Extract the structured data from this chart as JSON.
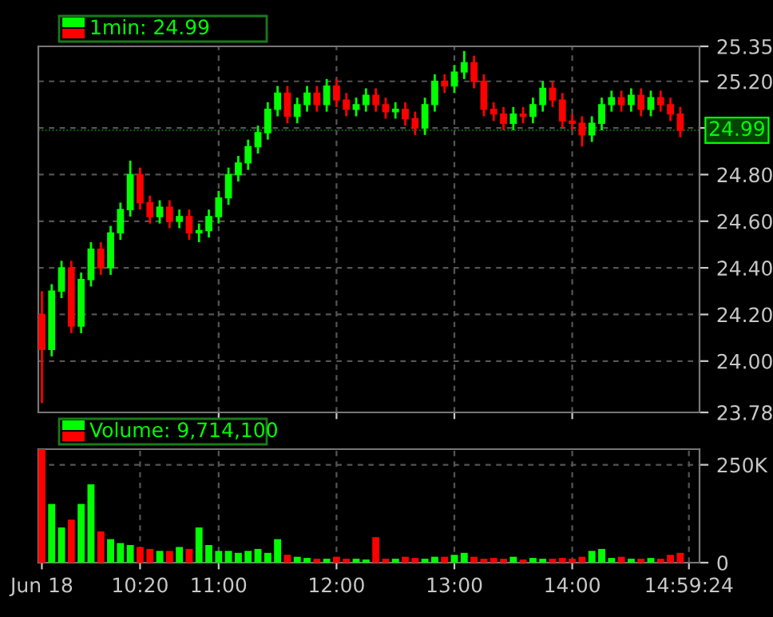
{
  "chart_data": [
    {
      "type": "candlestick",
      "legend": "top left",
      "grid": true,
      "line_style": "dashed",
      "tick_labels": "y",
      "xlim": [
        9.47,
        15.08
      ],
      "ylim": [
        23.78,
        25.35
      ],
      "yticks": [
        {
          "value": 23.78,
          "label": "23.78"
        },
        {
          "value": 24.0,
          "label": "24.00"
        },
        {
          "value": 24.2,
          "label": "24.20"
        },
        {
          "value": 24.4,
          "label": "24.40"
        },
        {
          "value": 24.6,
          "label": "24.60"
        },
        {
          "value": 24.8,
          "label": "24.80"
        },
        {
          "value": 25.0,
          "label": null
        },
        {
          "value": 25.2,
          "label": "25.20"
        },
        {
          "value": 25.35,
          "label": "25.35"
        }
      ],
      "ref_lines": [
        {
          "axis": "y",
          "value": 24.99,
          "label": "24.99",
          "color": "#00ff00"
        }
      ],
      "x": [
        9.5,
        9.5833,
        9.6667,
        9.75,
        9.8333,
        9.9167,
        10,
        10.0833,
        10.1667,
        10.25,
        10.3333,
        10.4167,
        10.5,
        10.5833,
        10.6667,
        10.75,
        10.8333,
        10.9167,
        11,
        11.0833,
        11.1667,
        11.25,
        11.3333,
        11.4167,
        11.5,
        11.5833,
        11.6667,
        11.75,
        11.8333,
        11.9167,
        12,
        12.0833,
        12.1667,
        12.25,
        12.3333,
        12.4167,
        12.5,
        12.5833,
        12.6667,
        12.75,
        12.8333,
        12.9167,
        13,
        13.0833,
        13.1667,
        13.25,
        13.3333,
        13.4167,
        13.5,
        13.5833,
        13.6667,
        13.75,
        13.8333,
        13.9167,
        14,
        14.0833,
        14.1667,
        14.25,
        14.3333,
        14.4167,
        14.5,
        14.5833,
        14.6667,
        14.75,
        14.8333,
        14.9167
      ],
      "series": [
        {
          "name": "1min: 24.99",
          "colors": [
            "#ff0000",
            "#00ff00",
            "#00ff00",
            "#ff0000",
            "#00ff00",
            "#00ff00",
            "#ff0000",
            "#00ff00",
            "#00ff00",
            "#00ff00",
            "#ff0000",
            "#ff0000",
            "#00ff00",
            "#ff0000",
            "#00ff00",
            "#ff0000",
            "#00ff00",
            "#00ff00",
            "#00ff00",
            "#00ff00",
            "#00ff00",
            "#00ff00",
            "#00ff00",
            "#00ff00",
            "#00ff00",
            "#ff0000",
            "#00ff00",
            "#00ff00",
            "#ff0000",
            "#00ff00",
            "#ff0000",
            "#ff0000",
            "#00ff00",
            "#00ff00",
            "#ff0000",
            "#ff0000",
            "#00ff00",
            "#ff0000",
            "#ff0000",
            "#00ff00",
            "#00ff00",
            "#ff0000",
            "#00ff00",
            "#00ff00",
            "#ff0000",
            "#ff0000",
            "#ff0000",
            "#ff0000",
            "#00ff00",
            "#ff0000",
            "#00ff00",
            "#00ff00",
            "#ff0000",
            "#ff0000",
            "#ff0000",
            "#ff0000",
            "#00ff00",
            "#00ff00",
            "#00ff00",
            "#ff0000",
            "#00ff00",
            "#ff0000",
            "#00ff00",
            "#ff0000",
            "#ff0000",
            "#ff0000"
          ],
          "ohlc": [
            [
              24.2,
              24.3,
              23.82,
              24.05
            ],
            [
              24.05,
              24.33,
              24.02,
              24.3
            ],
            [
              24.3,
              24.43,
              24.27,
              24.4
            ],
            [
              24.4,
              24.43,
              24.12,
              24.15
            ],
            [
              24.15,
              24.38,
              24.12,
              24.35
            ],
            [
              24.35,
              24.51,
              24.32,
              24.48
            ],
            [
              24.48,
              24.51,
              24.37,
              24.4
            ],
            [
              24.4,
              24.58,
              24.37,
              24.55
            ],
            [
              24.55,
              24.68,
              24.52,
              24.65
            ],
            [
              24.65,
              24.86,
              24.62,
              24.8
            ],
            [
              24.8,
              24.83,
              24.65,
              24.68
            ],
            [
              24.68,
              24.71,
              24.59,
              24.62
            ],
            [
              24.62,
              24.69,
              24.59,
              24.66
            ],
            [
              24.66,
              24.69,
              24.57,
              24.6
            ],
            [
              24.6,
              24.65,
              24.57,
              24.62
            ],
            [
              24.62,
              24.65,
              24.52,
              24.55
            ],
            [
              24.55,
              24.59,
              24.51,
              24.56
            ],
            [
              24.56,
              24.65,
              24.53,
              24.62
            ],
            [
              24.62,
              24.73,
              24.59,
              24.7
            ],
            [
              24.7,
              24.83,
              24.67,
              24.8
            ],
            [
              24.8,
              24.88,
              24.77,
              24.85
            ],
            [
              24.85,
              24.95,
              24.82,
              24.92
            ],
            [
              24.92,
              25.01,
              24.89,
              24.98
            ],
            [
              24.98,
              25.11,
              24.95,
              25.08
            ],
            [
              25.08,
              25.18,
              25.05,
              25.15
            ],
            [
              25.15,
              25.18,
              25.02,
              25.05
            ],
            [
              25.05,
              25.13,
              25.02,
              25.1
            ],
            [
              25.1,
              25.18,
              25.07,
              25.15
            ],
            [
              25.15,
              25.18,
              25.07,
              25.1
            ],
            [
              25.1,
              25.21,
              25.07,
              25.18
            ],
            [
              25.18,
              25.21,
              25.09,
              25.12
            ],
            [
              25.12,
              25.15,
              25.05,
              25.08
            ],
            [
              25.08,
              25.13,
              25.05,
              25.1
            ],
            [
              25.1,
              25.17,
              25.07,
              25.14
            ],
            [
              25.14,
              25.17,
              25.07,
              25.1
            ],
            [
              25.1,
              25.13,
              25.04,
              25.07
            ],
            [
              25.07,
              25.11,
              25.04,
              25.08
            ],
            [
              25.08,
              25.11,
              25.01,
              25.04
            ],
            [
              25.04,
              25.07,
              24.97,
              25.0
            ],
            [
              25.0,
              25.13,
              24.97,
              25.1
            ],
            [
              25.1,
              25.23,
              25.07,
              25.2
            ],
            [
              25.2,
              25.23,
              25.15,
              25.18
            ],
            [
              25.18,
              25.27,
              25.15,
              25.24
            ],
            [
              25.24,
              25.33,
              25.21,
              25.28
            ],
            [
              25.28,
              25.31,
              25.17,
              25.2
            ],
            [
              25.2,
              25.23,
              25.05,
              25.08
            ],
            [
              25.08,
              25.11,
              25.03,
              25.06
            ],
            [
              25.06,
              25.09,
              24.99,
              25.02
            ],
            [
              25.02,
              25.09,
              24.99,
              25.06
            ],
            [
              25.06,
              25.09,
              25.02,
              25.05
            ],
            [
              25.05,
              25.13,
              25.02,
              25.1
            ],
            [
              25.1,
              25.2,
              25.07,
              25.17
            ],
            [
              25.17,
              25.2,
              25.09,
              25.12
            ],
            [
              25.12,
              25.15,
              25.0,
              25.03
            ],
            [
              25.03,
              25.06,
              24.99,
              25.02
            ],
            [
              25.02,
              25.05,
              24.92,
              24.97
            ],
            [
              24.97,
              25.05,
              24.94,
              25.02
            ],
            [
              25.02,
              25.13,
              24.99,
              25.1
            ],
            [
              25.1,
              25.16,
              25.07,
              25.13
            ],
            [
              25.13,
              25.16,
              25.07,
              25.1
            ],
            [
              25.1,
              25.17,
              25.07,
              25.14
            ],
            [
              25.14,
              25.17,
              25.05,
              25.08
            ],
            [
              25.08,
              25.16,
              25.05,
              25.13
            ],
            [
              25.13,
              25.16,
              25.07,
              25.1
            ],
            [
              25.1,
              25.13,
              25.03,
              25.06
            ],
            [
              25.06,
              25.09,
              24.96,
              24.99
            ]
          ]
        }
      ]
    },
    {
      "type": "bar",
      "legend": "top left",
      "grid": true,
      "line_style": "dashed",
      "xlim": [
        9.47,
        15.08
      ],
      "xticks": [
        {
          "value": 9.5,
          "label": "Jun 18"
        },
        {
          "value": 10.3333,
          "label": "10:20"
        },
        {
          "value": 11,
          "label": "11:00"
        },
        {
          "value": 12,
          "label": "12:00"
        },
        {
          "value": 13,
          "label": "13:00"
        },
        {
          "value": 14,
          "label": "14:00"
        },
        {
          "value": 14.99,
          "label": "14:59:24"
        }
      ],
      "ylim": [
        0,
        290000
      ],
      "yticks": [
        0,
        {
          "value": 250000,
          "label": "250K"
        }
      ],
      "x": [
        9.5,
        9.5833,
        9.6667,
        9.75,
        9.8333,
        9.9167,
        10,
        10.0833,
        10.1667,
        10.25,
        10.3333,
        10.4167,
        10.5,
        10.5833,
        10.6667,
        10.75,
        10.8333,
        10.9167,
        11,
        11.0833,
        11.1667,
        11.25,
        11.3333,
        11.4167,
        11.5,
        11.5833,
        11.6667,
        11.75,
        11.8333,
        11.9167,
        12,
        12.0833,
        12.1667,
        12.25,
        12.3333,
        12.4167,
        12.5,
        12.5833,
        12.6667,
        12.75,
        12.8333,
        12.9167,
        13,
        13.0833,
        13.1667,
        13.25,
        13.3333,
        13.4167,
        13.5,
        13.5833,
        13.6667,
        13.75,
        13.8333,
        13.9167,
        14,
        14.0833,
        14.1667,
        14.25,
        14.3333,
        14.4167,
        14.5,
        14.5833,
        14.6667,
        14.75,
        14.8333,
        14.9167
      ],
      "series": [
        {
          "name": "Volume: 9,714,100",
          "colors": [
            "#ff0000",
            "#00ff00",
            "#00ff00",
            "#ff0000",
            "#00ff00",
            "#00ff00",
            "#ff0000",
            "#00ff00",
            "#00ff00",
            "#00ff00",
            "#ff0000",
            "#ff0000",
            "#00ff00",
            "#ff0000",
            "#00ff00",
            "#ff0000",
            "#00ff00",
            "#00ff00",
            "#00ff00",
            "#00ff00",
            "#00ff00",
            "#00ff00",
            "#00ff00",
            "#00ff00",
            "#00ff00",
            "#ff0000",
            "#00ff00",
            "#00ff00",
            "#ff0000",
            "#00ff00",
            "#ff0000",
            "#ff0000",
            "#00ff00",
            "#00ff00",
            "#ff0000",
            "#ff0000",
            "#00ff00",
            "#ff0000",
            "#ff0000",
            "#00ff00",
            "#00ff00",
            "#ff0000",
            "#00ff00",
            "#00ff00",
            "#ff0000",
            "#ff0000",
            "#ff0000",
            "#ff0000",
            "#00ff00",
            "#ff0000",
            "#00ff00",
            "#00ff00",
            "#ff0000",
            "#ff0000",
            "#ff0000",
            "#ff0000",
            "#00ff00",
            "#00ff00",
            "#00ff00",
            "#ff0000",
            "#00ff00",
            "#ff0000",
            "#00ff00",
            "#ff0000",
            "#ff0000",
            "#ff0000"
          ],
          "values": [
            290000,
            150000,
            90000,
            110000,
            150000,
            200000,
            80000,
            60000,
            50000,
            45000,
            40000,
            35000,
            30000,
            30000,
            40000,
            35000,
            90000,
            45000,
            30000,
            30000,
            25000,
            30000,
            35000,
            25000,
            60000,
            20000,
            15000,
            12000,
            10000,
            10000,
            15000,
            10000,
            10000,
            8000,
            65000,
            10000,
            10000,
            15000,
            12000,
            10000,
            15000,
            15000,
            20000,
            25000,
            15000,
            10000,
            12000,
            10000,
            15000,
            8000,
            12000,
            10000,
            10000,
            12000,
            10000,
            15000,
            30000,
            35000,
            12000,
            15000,
            10000,
            10000,
            12000,
            10000,
            20000,
            25000
          ]
        }
      ]
    }
  ]
}
